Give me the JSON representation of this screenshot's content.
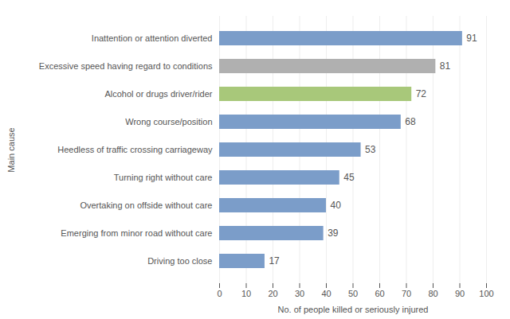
{
  "chart_data": {
    "type": "bar",
    "orientation": "horizontal",
    "categories": [
      "Inattention or attention diverted",
      "Excessive speed having regard to conditions",
      "Alcohol or drugs driver/rider",
      "Wrong course/position",
      "Heedless of traffic crossing carriageway",
      "Turning right without care",
      "Overtaking on offside without care",
      "Emerging from minor road without care",
      "Driving too close"
    ],
    "values": [
      91,
      81,
      72,
      68,
      53,
      45,
      40,
      39,
      17
    ],
    "colors": [
      "#7b9dc9",
      "#b0b0b0",
      "#a8c87a",
      "#7b9dc9",
      "#7b9dc9",
      "#7b9dc9",
      "#7b9dc9",
      "#7b9dc9",
      "#7b9dc9"
    ],
    "xlabel": "No. of people killed or seriously injured",
    "ylabel": "Main cause",
    "xlim": [
      0,
      100
    ],
    "xticks": [
      0,
      10,
      20,
      30,
      40,
      50,
      60,
      70,
      80,
      90,
      100
    ],
    "grid": true,
    "data_labels": true
  }
}
